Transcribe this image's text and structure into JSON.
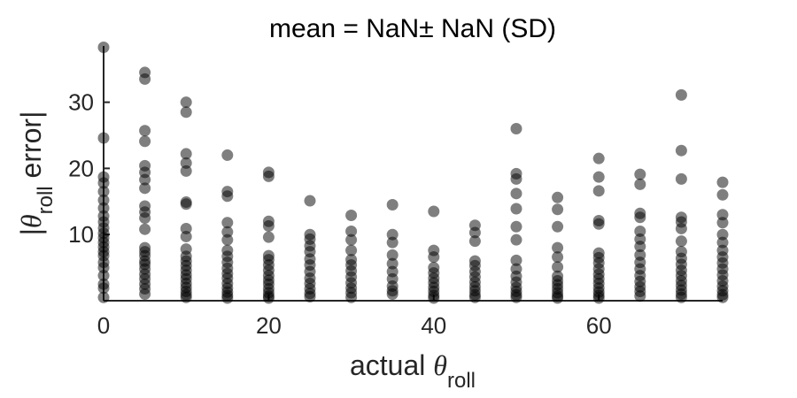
{
  "chart_data": {
    "type": "scatter",
    "title": "mean = NaN± NaN (SD)",
    "xlabel": {
      "prefix": "actual ",
      "symbol": "θ",
      "subscript": "roll"
    },
    "ylabel": {
      "open": "|",
      "symbol": "θ",
      "subscript": "roll",
      "close": " error|"
    },
    "xlim": [
      0,
      75
    ],
    "ylim": [
      0,
      38.5
    ],
    "xticks": [
      "0",
      "20",
      "40",
      "60"
    ],
    "yticks": [
      "10",
      "20",
      "30"
    ],
    "grid": false,
    "legend": "none",
    "marker_color": "#000000",
    "marker_opacity": 0.5,
    "series": [
      {
        "points": [
          [
            0,
            38.3
          ],
          [
            0,
            24.6
          ],
          [
            0,
            18.7
          ],
          [
            0,
            17.8
          ],
          [
            0,
            16.5
          ],
          [
            0,
            15.2
          ],
          [
            0,
            14.0
          ],
          [
            0,
            12.8
          ],
          [
            0,
            11.9
          ],
          [
            0,
            11.0
          ],
          [
            0,
            10.2
          ],
          [
            0,
            9.5
          ],
          [
            0,
            8.8
          ],
          [
            0,
            8.1
          ],
          [
            0,
            7.4
          ],
          [
            0,
            6.8
          ],
          [
            0,
            5.8
          ],
          [
            0,
            5.0
          ],
          [
            0,
            3.8
          ],
          [
            0,
            2.5
          ],
          [
            0,
            1.9
          ],
          [
            0,
            0.5
          ],
          [
            5,
            34.5
          ],
          [
            5,
            33.5
          ],
          [
            5,
            25.7
          ],
          [
            5,
            24.1
          ],
          [
            5,
            20.4
          ],
          [
            5,
            19.4
          ],
          [
            5,
            18.3
          ],
          [
            5,
            17.0
          ],
          [
            5,
            14.3
          ],
          [
            5,
            13.4
          ],
          [
            5,
            12.5
          ],
          [
            5,
            10.8
          ],
          [
            5,
            8.0
          ],
          [
            5,
            7.4
          ],
          [
            5,
            6.8
          ],
          [
            5,
            6.0
          ],
          [
            5,
            5.5
          ],
          [
            5,
            4.8
          ],
          [
            5,
            4.0
          ],
          [
            5,
            3.3
          ],
          [
            5,
            2.5
          ],
          [
            5,
            1.8
          ],
          [
            5,
            1.0
          ],
          [
            10,
            30.0
          ],
          [
            10,
            28.5
          ],
          [
            10,
            22.2
          ],
          [
            10,
            20.8
          ],
          [
            10,
            19.6
          ],
          [
            10,
            14.9
          ],
          [
            10,
            14.6
          ],
          [
            10,
            10.9
          ],
          [
            10,
            9.7
          ],
          [
            10,
            7.8
          ],
          [
            10,
            6.7
          ],
          [
            10,
            6.0
          ],
          [
            10,
            5.3
          ],
          [
            10,
            4.6
          ],
          [
            10,
            3.9
          ],
          [
            10,
            3.3
          ],
          [
            10,
            2.6
          ],
          [
            10,
            2.0
          ],
          [
            10,
            1.4
          ],
          [
            10,
            0.9
          ],
          [
            10,
            0.5
          ],
          [
            15,
            22.0
          ],
          [
            15,
            16.5
          ],
          [
            15,
            15.8
          ],
          [
            15,
            11.8
          ],
          [
            15,
            10.4
          ],
          [
            15,
            9.2
          ],
          [
            15,
            7.6
          ],
          [
            15,
            6.7
          ],
          [
            15,
            5.8
          ],
          [
            15,
            4.9
          ],
          [
            15,
            4.1
          ],
          [
            15,
            3.4
          ],
          [
            15,
            2.6
          ],
          [
            15,
            1.9
          ],
          [
            15,
            1.3
          ],
          [
            15,
            0.8
          ],
          [
            15,
            0.4
          ],
          [
            20,
            19.4
          ],
          [
            20,
            18.8
          ],
          [
            20,
            12.0
          ],
          [
            20,
            11.3
          ],
          [
            20,
            9.6
          ],
          [
            20,
            6.8
          ],
          [
            20,
            6.2
          ],
          [
            20,
            5.4
          ],
          [
            20,
            4.6
          ],
          [
            20,
            3.8
          ],
          [
            20,
            3.1
          ],
          [
            20,
            2.5
          ],
          [
            20,
            1.8
          ],
          [
            20,
            1.2
          ],
          [
            20,
            0.7
          ],
          [
            20,
            0.4
          ],
          [
            25,
            15.1
          ],
          [
            25,
            10.0
          ],
          [
            25,
            9.3
          ],
          [
            25,
            8.3
          ],
          [
            25,
            7.4
          ],
          [
            25,
            6.3
          ],
          [
            25,
            5.4
          ],
          [
            25,
            4.4
          ],
          [
            25,
            3.4
          ],
          [
            25,
            2.6
          ],
          [
            25,
            1.8
          ],
          [
            25,
            1.1
          ],
          [
            25,
            0.6
          ],
          [
            30,
            12.9
          ],
          [
            30,
            10.5
          ],
          [
            30,
            9.2
          ],
          [
            30,
            7.6
          ],
          [
            30,
            6.2
          ],
          [
            30,
            5.4
          ],
          [
            30,
            4.5
          ],
          [
            30,
            3.6
          ],
          [
            30,
            2.7
          ],
          [
            30,
            1.9
          ],
          [
            30,
            1.2
          ],
          [
            30,
            0.5
          ],
          [
            35,
            14.5
          ],
          [
            35,
            10.0
          ],
          [
            35,
            8.8
          ],
          [
            35,
            6.9
          ],
          [
            35,
            5.6
          ],
          [
            35,
            4.4
          ],
          [
            35,
            3.3
          ],
          [
            35,
            2.2
          ],
          [
            35,
            1.5
          ],
          [
            35,
            1.0
          ],
          [
            40,
            13.5
          ],
          [
            40,
            7.6
          ],
          [
            40,
            6.6
          ],
          [
            40,
            5.0
          ],
          [
            40,
            4.2
          ],
          [
            40,
            3.4
          ],
          [
            40,
            2.7
          ],
          [
            40,
            2.0
          ],
          [
            40,
            1.4
          ],
          [
            40,
            0.8
          ],
          [
            40,
            0.4
          ],
          [
            45,
            11.4
          ],
          [
            45,
            10.3
          ],
          [
            45,
            9.0
          ],
          [
            45,
            6.0
          ],
          [
            45,
            5.3
          ],
          [
            45,
            4.4
          ],
          [
            45,
            3.6
          ],
          [
            45,
            2.8
          ],
          [
            45,
            2.1
          ],
          [
            45,
            1.5
          ],
          [
            45,
            0.9
          ],
          [
            45,
            0.5
          ],
          [
            50,
            26.0
          ],
          [
            50,
            19.2
          ],
          [
            50,
            18.4
          ],
          [
            50,
            16.2
          ],
          [
            50,
            13.9
          ],
          [
            50,
            11.2
          ],
          [
            50,
            9.2
          ],
          [
            50,
            6.1
          ],
          [
            50,
            4.8
          ],
          [
            50,
            3.7
          ],
          [
            50,
            2.8
          ],
          [
            50,
            2.0
          ],
          [
            50,
            1.4
          ],
          [
            50,
            0.9
          ],
          [
            50,
            0.5
          ],
          [
            55,
            15.6
          ],
          [
            55,
            13.8
          ],
          [
            55,
            11.2
          ],
          [
            55,
            8.0
          ],
          [
            55,
            6.6
          ],
          [
            55,
            5.1
          ],
          [
            55,
            3.7
          ],
          [
            55,
            3.0
          ],
          [
            55,
            2.4
          ],
          [
            55,
            1.8
          ],
          [
            55,
            1.2
          ],
          [
            55,
            0.7
          ],
          [
            55,
            0.4
          ],
          [
            60,
            21.5
          ],
          [
            60,
            18.7
          ],
          [
            60,
            16.6
          ],
          [
            60,
            12.1
          ],
          [
            60,
            11.6
          ],
          [
            60,
            7.2
          ],
          [
            60,
            6.5
          ],
          [
            60,
            5.7
          ],
          [
            60,
            4.8
          ],
          [
            60,
            4.0
          ],
          [
            60,
            3.3
          ],
          [
            60,
            2.6
          ],
          [
            60,
            1.9
          ],
          [
            60,
            1.3
          ],
          [
            60,
            0.8
          ],
          [
            60,
            0.4
          ],
          [
            65,
            19.1
          ],
          [
            65,
            17.6
          ],
          [
            65,
            13.2
          ],
          [
            65,
            12.6
          ],
          [
            65,
            10.5
          ],
          [
            65,
            9.3
          ],
          [
            65,
            8.2
          ],
          [
            65,
            6.9
          ],
          [
            65,
            5.8
          ],
          [
            65,
            4.8
          ],
          [
            65,
            3.8
          ],
          [
            65,
            2.9
          ],
          [
            65,
            2.1
          ],
          [
            65,
            1.4
          ],
          [
            65,
            0.7
          ],
          [
            70,
            31.1
          ],
          [
            70,
            22.7
          ],
          [
            70,
            18.4
          ],
          [
            70,
            12.6
          ],
          [
            70,
            11.9
          ],
          [
            70,
            10.9
          ],
          [
            70,
            9.0
          ],
          [
            70,
            7.4
          ],
          [
            70,
            6.4
          ],
          [
            70,
            5.5
          ],
          [
            70,
            4.6
          ],
          [
            70,
            3.8
          ],
          [
            70,
            3.0
          ],
          [
            70,
            2.3
          ],
          [
            70,
            1.6
          ],
          [
            70,
            1.0
          ],
          [
            70,
            0.5
          ],
          [
            75,
            17.9
          ],
          [
            75,
            16.0
          ],
          [
            75,
            13.0
          ],
          [
            75,
            11.8
          ],
          [
            75,
            10.0
          ],
          [
            75,
            8.8
          ],
          [
            75,
            7.6
          ],
          [
            75,
            6.6
          ],
          [
            75,
            5.7
          ],
          [
            75,
            4.8
          ],
          [
            75,
            3.9
          ],
          [
            75,
            3.0
          ],
          [
            75,
            2.2
          ],
          [
            75,
            1.5
          ],
          [
            75,
            0.9
          ],
          [
            75,
            0.5
          ]
        ]
      }
    ]
  }
}
